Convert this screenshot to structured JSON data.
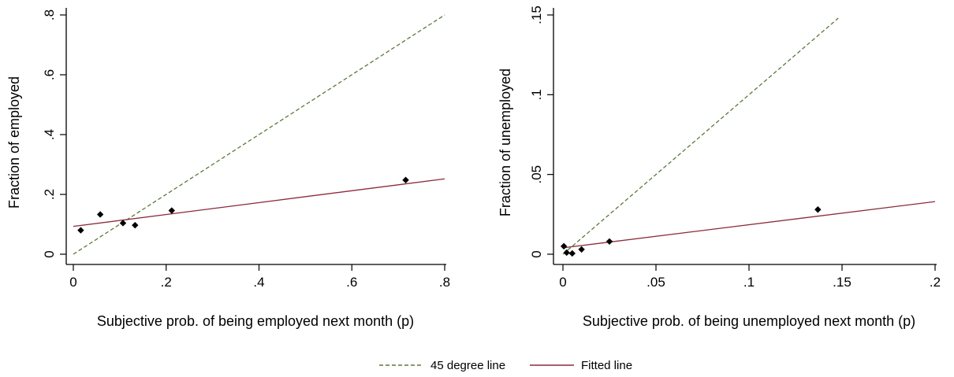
{
  "chart_data": [
    {
      "type": "scatter",
      "xlabel": "Subjective prob. of being employed next month (p)",
      "ylabel": "Fraction of employed",
      "xlim": [
        0,
        0.8
      ],
      "ylim": [
        0,
        0.8
      ],
      "xticks": [
        0,
        0.2,
        0.4,
        0.6,
        0.8
      ],
      "xtick_labels": [
        "0",
        ".2",
        ".4",
        ".6",
        ".8"
      ],
      "yticks": [
        0,
        0.2,
        0.4,
        0.6,
        0.8
      ],
      "ytick_labels": [
        "0",
        ".2",
        ".4",
        ".6",
        ".8"
      ],
      "points": [
        {
          "x": 0.016,
          "y": 0.08
        },
        {
          "x": 0.058,
          "y": 0.133
        },
        {
          "x": 0.107,
          "y": 0.104
        },
        {
          "x": 0.133,
          "y": 0.097
        },
        {
          "x": 0.212,
          "y": 0.146
        },
        {
          "x": 0.716,
          "y": 0.248
        }
      ],
      "lines": [
        {
          "key": "diag",
          "x": [
            0,
            0.8
          ],
          "y": [
            0,
            0.8
          ]
        },
        {
          "key": "fit",
          "x": [
            0,
            0.8
          ],
          "y": [
            0.093,
            0.252
          ]
        }
      ]
    },
    {
      "type": "scatter",
      "xlabel": "Subjective prob. of being unemployed next month (p)",
      "ylabel": "Fraction of unemployed",
      "xlim": [
        0,
        0.2
      ],
      "ylim": [
        0,
        0.15
      ],
      "xticks": [
        0,
        0.05,
        0.1,
        0.15,
        0.2
      ],
      "xtick_labels": [
        "0",
        ".05",
        ".1",
        ".15",
        ".2"
      ],
      "yticks": [
        0,
        0.05,
        0.1,
        0.15
      ],
      "ytick_labels": [
        "0",
        ".05",
        ".1",
        ".15"
      ],
      "points": [
        {
          "x": 0.0005,
          "y": 0.005
        },
        {
          "x": 0.002,
          "y": 0.001
        },
        {
          "x": 0.005,
          "y": 0.0005
        },
        {
          "x": 0.01,
          "y": 0.003
        },
        {
          "x": 0.025,
          "y": 0.008
        },
        {
          "x": 0.137,
          "y": 0.028
        }
      ],
      "lines": [
        {
          "key": "diag",
          "x": [
            0,
            0.148
          ],
          "y": [
            0,
            0.148
          ]
        },
        {
          "key": "fit",
          "x": [
            0,
            0.2
          ],
          "y": [
            0.004,
            0.033
          ]
        }
      ]
    }
  ],
  "legend": {
    "placement": "bottom-center",
    "items": [
      {
        "key": "diag",
        "label": "45 degree line",
        "color": "#5a7a3a",
        "dash": true
      },
      {
        "key": "fit",
        "label": "Fitted line",
        "color": "#8c2a3c",
        "dash": false
      }
    ]
  },
  "colors": {
    "diag": "#5a7a3a",
    "fit": "#8c2a3c",
    "points": "#000000",
    "axis": "#000000"
  }
}
